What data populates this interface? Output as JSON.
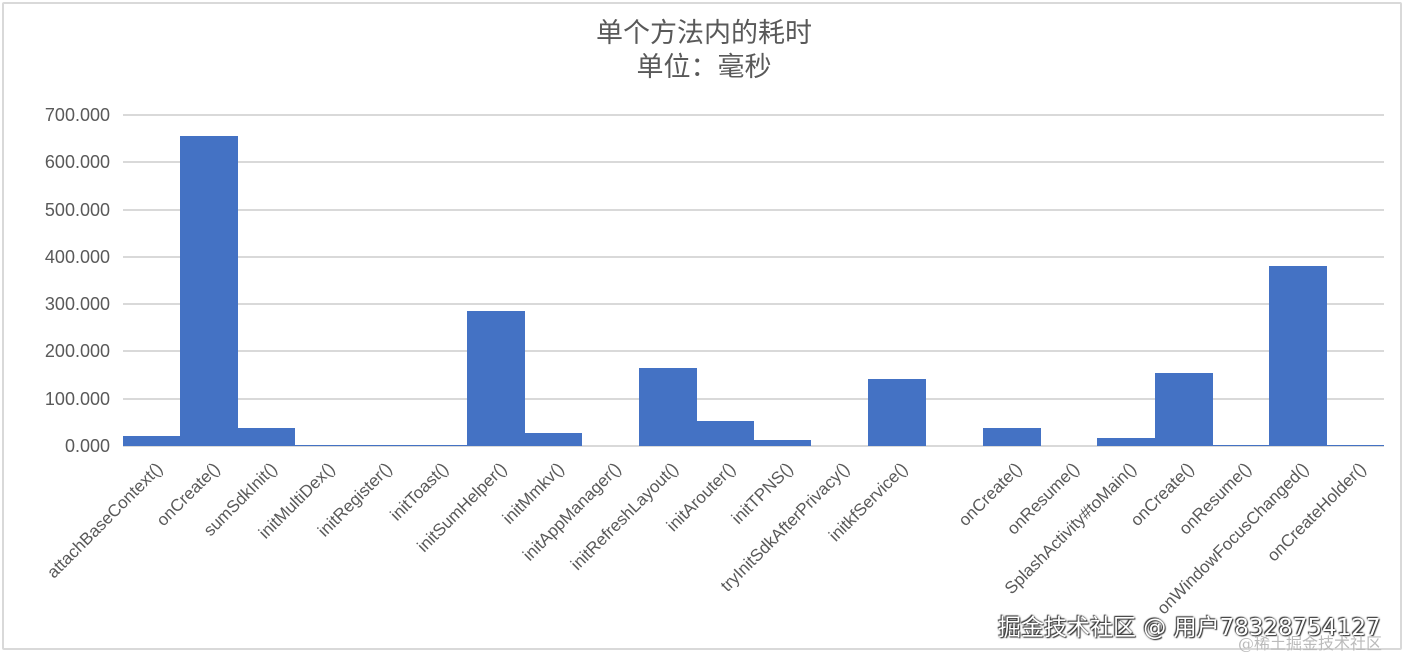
{
  "chart_data": {
    "type": "bar",
    "title": "单个方法内的耗时",
    "subtitle": "单位：毫秒",
    "xlabel": "",
    "ylabel": "",
    "ylim": [
      0,
      700
    ],
    "yticks": [
      "0.000",
      "100.000",
      "200.000",
      "300.000",
      "400.000",
      "500.000",
      "600.000",
      "700.000"
    ],
    "grid": true,
    "legend": null,
    "bar_color": "#4472c4",
    "categories": [
      "attachBaseContext()",
      "onCreate()",
      "sumSdkInit()",
      "initMultiDex()",
      "initRegister()",
      "initToast()",
      "initSumHelper()",
      "initMmkv()",
      "initAppManager()",
      "initRefreshLayout()",
      "initArouter()",
      "initTPNS()",
      "tryInitSdkAfterPrivacy()",
      "initkfService()",
      "",
      "onCreate()",
      "onResume()",
      "SplashActivity#toMain()",
      "onCreate()",
      "onResume()",
      "onWindowFocusChanged()",
      "onCreateHolder()"
    ],
    "values": [
      21,
      655,
      38,
      3,
      3,
      3,
      285,
      28,
      0,
      165,
      53,
      13,
      0,
      142,
      0,
      38,
      0,
      17,
      155,
      3,
      380,
      3
    ]
  },
  "watermark": {
    "main": "掘金技术社区 @ 用户78328754127",
    "sub": "@稀土掘金技术社区"
  }
}
